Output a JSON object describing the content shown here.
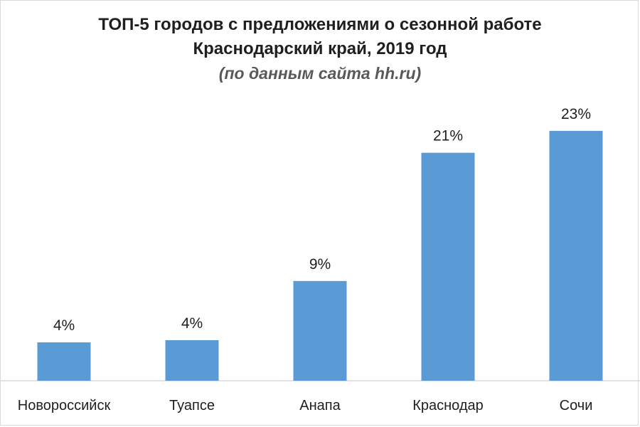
{
  "chart_data": {
    "type": "bar",
    "title": "ТОП-5 городов с предложениями о сезонной работе",
    "title_line2": "Краснодарский край, 2019 год",
    "subtitle": "(по данным сайта hh.ru)",
    "categories": [
      "Новороссийск",
      "Туапсе",
      "Анапа",
      "Краснодар",
      "Сочи"
    ],
    "values": [
      3.5,
      3.7,
      9.1,
      20.8,
      22.8
    ],
    "data_labels": [
      "4%",
      "4%",
      "9%",
      "21%",
      "23%"
    ],
    "xlabel": "",
    "ylabel": "",
    "ylim": [
      0,
      25
    ],
    "grid": false,
    "legend": "none",
    "bar_color": "#5b9bd5",
    "axis_color": "#d9d9d9",
    "label_color": "#1f1f1f"
  }
}
